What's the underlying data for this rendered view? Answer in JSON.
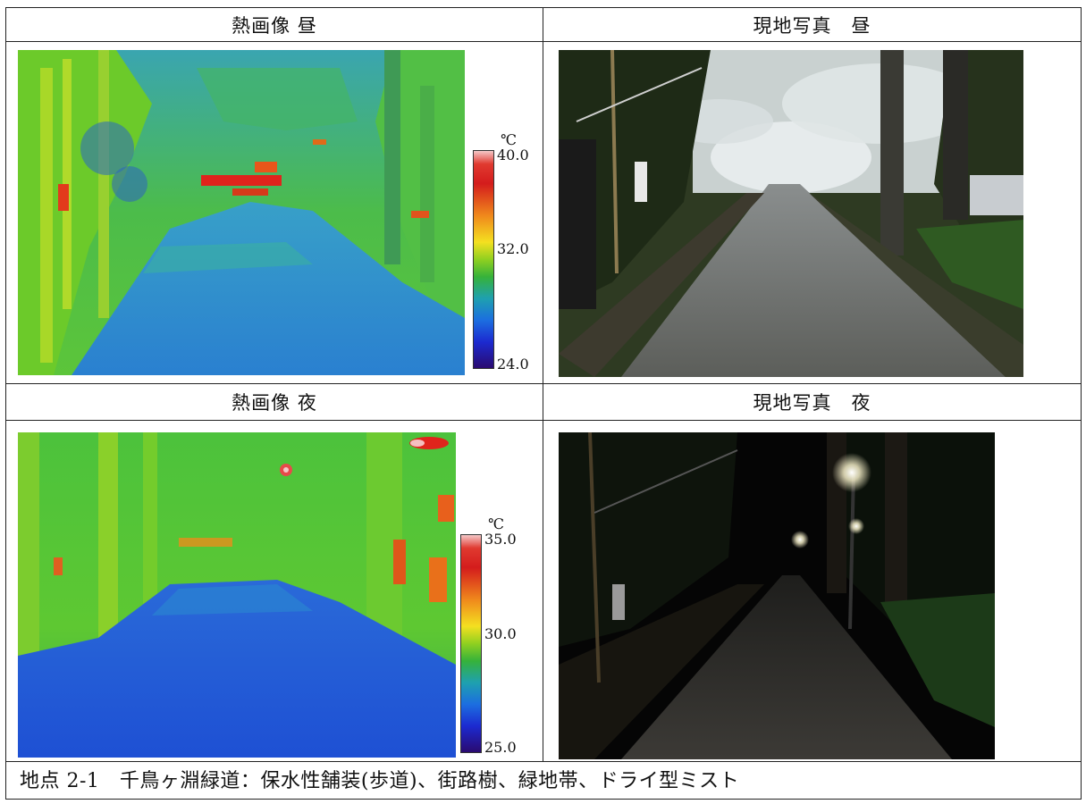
{
  "headers": {
    "thermal_day": "熱画像 昼",
    "photo_day": "現地写真　昼",
    "thermal_night": "熱画像 夜",
    "photo_night": "現地写真　夜"
  },
  "scale_day": {
    "unit": "℃",
    "max": "40.0",
    "mid": "32.0",
    "min": "24.0"
  },
  "scale_night": {
    "unit": "℃",
    "max": "35.0",
    "mid": "30.0",
    "min": "25.0"
  },
  "caption": "地点 2-1　千鳥ヶ淵緑道：保水性舗装(歩道)、街路樹、緑地帯、ドライ型ミスト",
  "colors": {
    "thermal_road": "#2f86d0",
    "thermal_veg": "#55c43a",
    "thermal_hot": "#e0241c",
    "night_road": "#1e55d6",
    "photo_sky": "#d8dfe2",
    "night_sky": "#050505"
  }
}
